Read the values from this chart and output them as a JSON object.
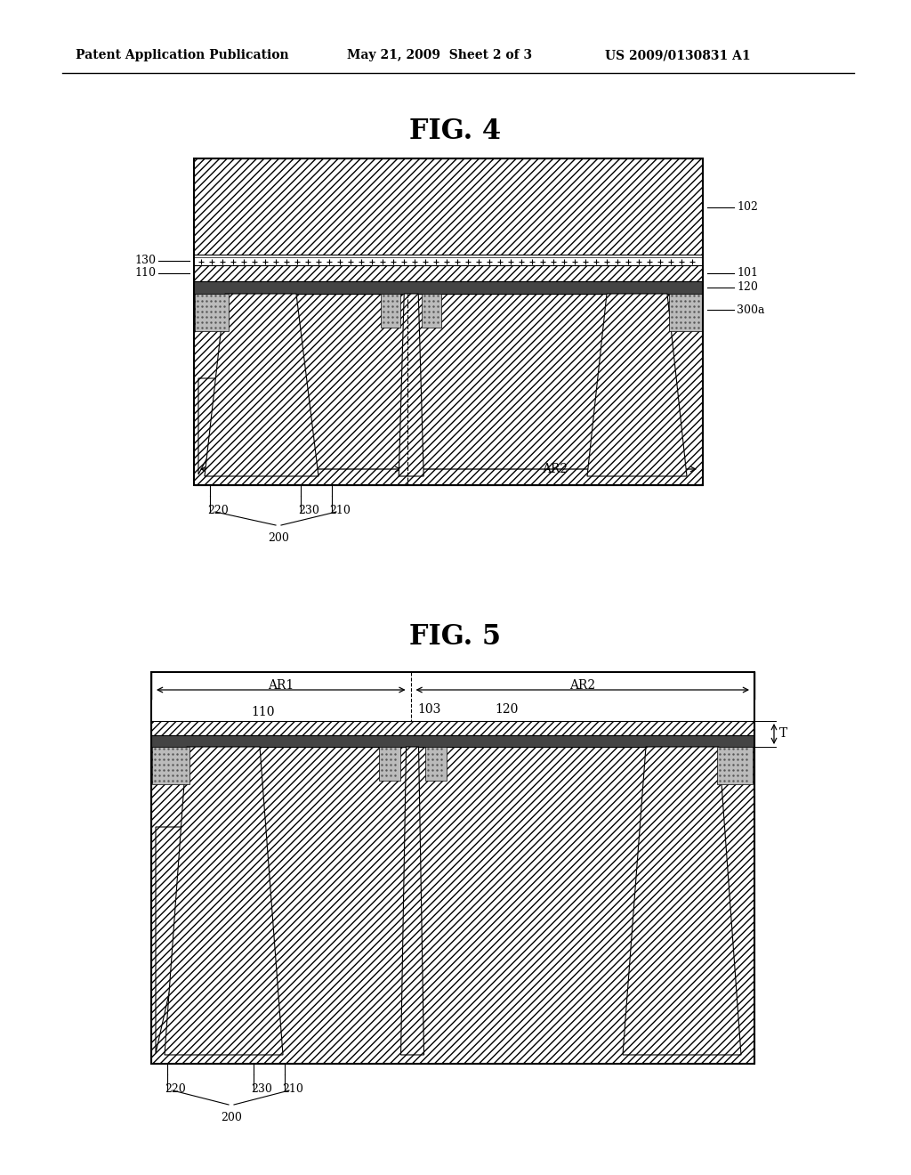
{
  "background_color": "#ffffff",
  "header_left": "Patent Application Publication",
  "header_center": "May 21, 2009  Sheet 2 of 3",
  "header_right": "US 2009/0130831 A1",
  "fig4_title": "FIG. 4",
  "fig5_title": "FIG. 5"
}
